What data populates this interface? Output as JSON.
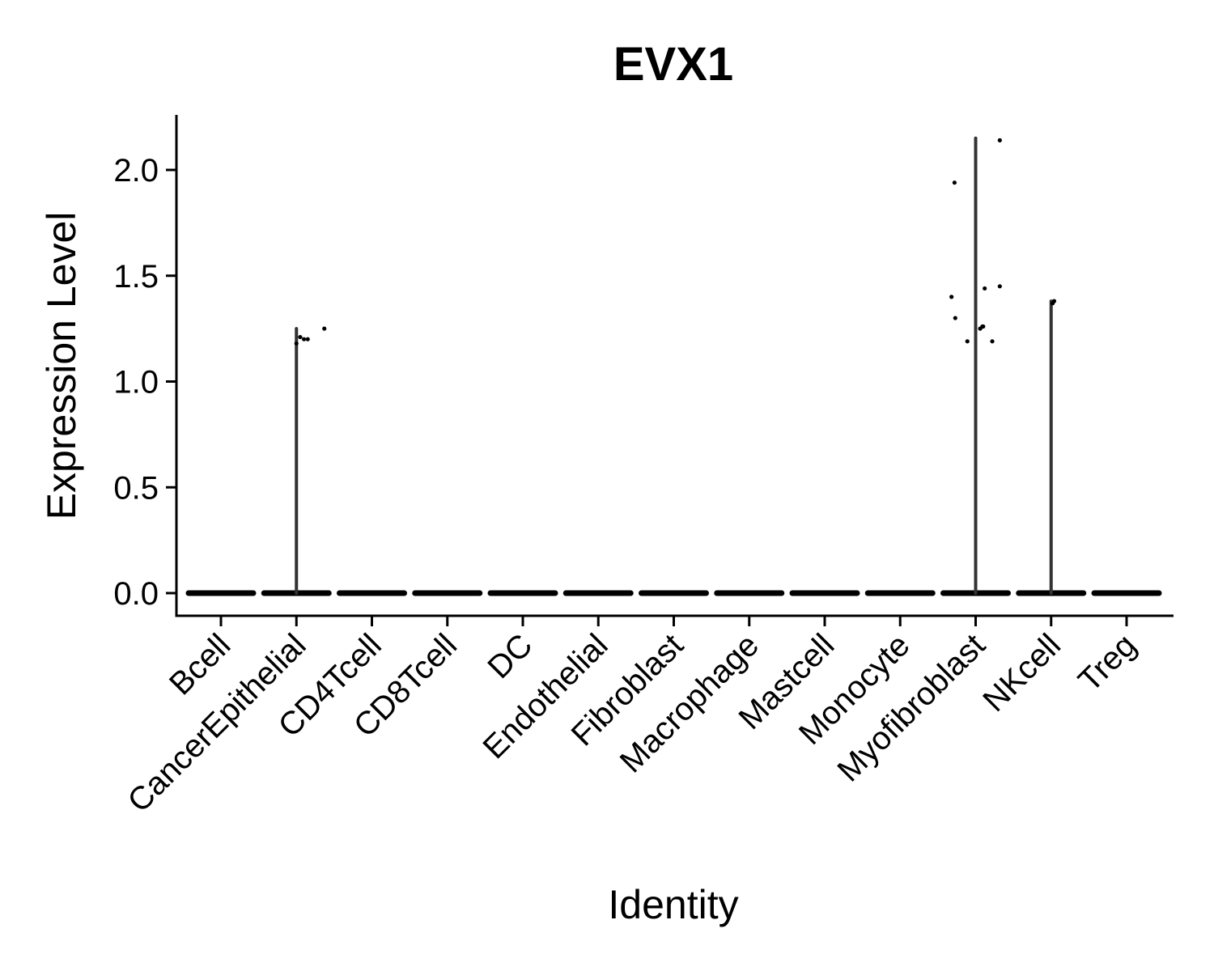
{
  "chart_data": {
    "type": "violin",
    "title": "EVX1",
    "xlabel": "Identity",
    "ylabel": "Expression Level",
    "ylim": [
      -0.1,
      2.25
    ],
    "yticks": [
      0.0,
      0.5,
      1.0,
      1.5,
      2.0
    ],
    "ytick_labels": [
      "0.0",
      "0.5",
      "1.0",
      "1.5",
      "2.0"
    ],
    "grid": false,
    "legend": "none",
    "categories": [
      "Bcell",
      "CancerEpithelial",
      "CD4Tcell",
      "CD8Tcell",
      "DC",
      "Endothelial",
      "Fibroblast",
      "Macrophage",
      "Mastcell",
      "Monocyte",
      "Myofibroblast",
      "NKcell",
      "Treg"
    ],
    "max_values": [
      0,
      1.25,
      0,
      0,
      0,
      0,
      0,
      0,
      0,
      0,
      2.15,
      1.38,
      0
    ],
    "nonzero_points": [
      {
        "category": "CancerEpithelial",
        "offset": -0.0,
        "y": 1.18
      },
      {
        "category": "CancerEpithelial",
        "offset": 0.05,
        "y": 1.21
      },
      {
        "category": "CancerEpithelial",
        "offset": 0.1,
        "y": 1.2
      },
      {
        "category": "CancerEpithelial",
        "offset": 0.15,
        "y": 1.2
      },
      {
        "category": "CancerEpithelial",
        "offset": 0.37,
        "y": 1.25
      },
      {
        "category": "Myofibroblast",
        "offset": -0.32,
        "y": 1.4
      },
      {
        "category": "Myofibroblast",
        "offset": -0.28,
        "y": 1.94
      },
      {
        "category": "Myofibroblast",
        "offset": -0.27,
        "y": 1.3
      },
      {
        "category": "Myofibroblast",
        "offset": -0.11,
        "y": 1.19
      },
      {
        "category": "Myofibroblast",
        "offset": 0.06,
        "y": 1.25
      },
      {
        "category": "Myofibroblast",
        "offset": 0.09,
        "y": 1.26
      },
      {
        "category": "Myofibroblast",
        "offset": 0.1,
        "y": 1.26
      },
      {
        "category": "Myofibroblast",
        "offset": 0.12,
        "y": 1.44
      },
      {
        "category": "Myofibroblast",
        "offset": 0.22,
        "y": 1.19
      },
      {
        "category": "Myofibroblast",
        "offset": 0.32,
        "y": 1.45
      },
      {
        "category": "Myofibroblast",
        "offset": 0.32,
        "y": 2.14
      },
      {
        "category": "NKcell",
        "offset": 0.02,
        "y": 1.37
      },
      {
        "category": "NKcell",
        "offset": 0.04,
        "y": 1.38
      }
    ]
  }
}
